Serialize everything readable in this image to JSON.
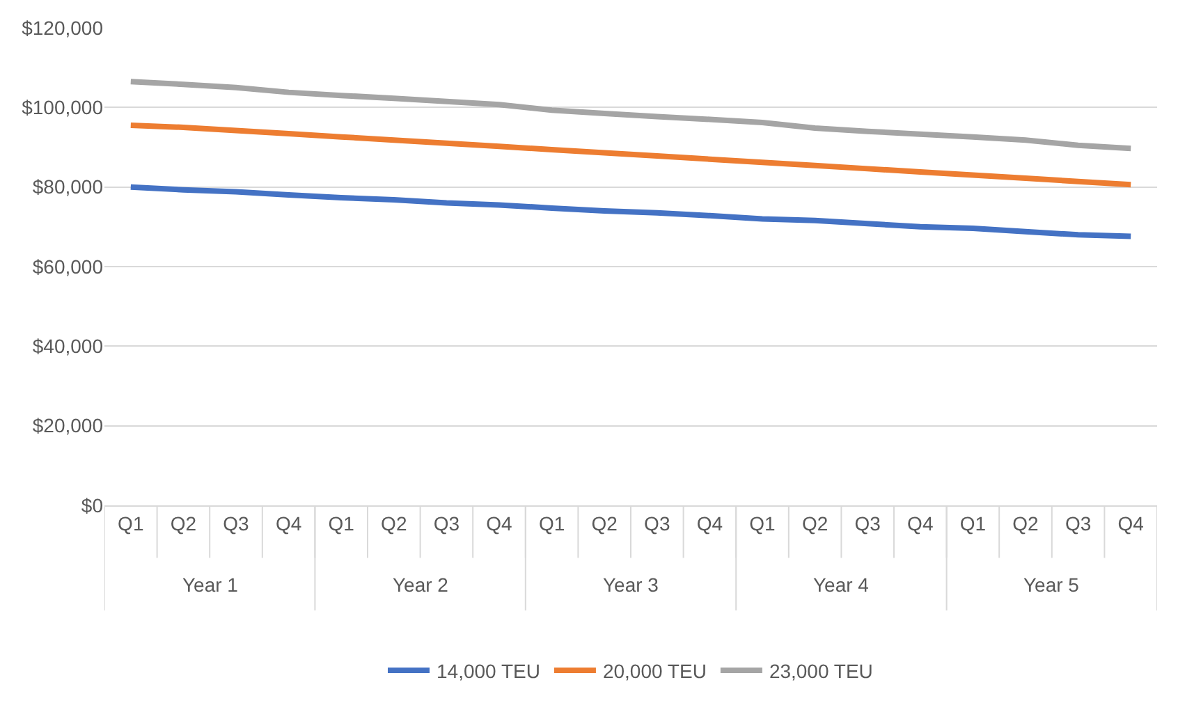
{
  "chart_data": {
    "type": "line",
    "categories": [
      "Q1",
      "Q2",
      "Q3",
      "Q4",
      "Q1",
      "Q2",
      "Q3",
      "Q4",
      "Q1",
      "Q2",
      "Q3",
      "Q4",
      "Q1",
      "Q2",
      "Q3",
      "Q4",
      "Q1",
      "Q2",
      "Q3",
      "Q4"
    ],
    "annotations": [
      "Year 1",
      "Year 2",
      "Year 3",
      "Year 4",
      "Year 5"
    ],
    "series": [
      {
        "name": "14,000 TEU",
        "color": "#4472c4",
        "values": [
          80000,
          79300,
          78800,
          78000,
          77300,
          76800,
          76000,
          75500,
          74700,
          74000,
          73500,
          72800,
          72000,
          71600,
          70800,
          70000,
          69600,
          68800,
          68000,
          67600
        ]
      },
      {
        "name": "20,000 TEU",
        "color": "#ed7d31",
        "values": [
          95500,
          95000,
          94200,
          93400,
          92600,
          91800,
          91000,
          90200,
          89400,
          88600,
          87800,
          87000,
          86200,
          85400,
          84600,
          83800,
          83000,
          82200,
          81400,
          80600
        ]
      },
      {
        "name": "23,000 TEU",
        "color": "#a5a5a5",
        "values": [
          106500,
          105800,
          105000,
          103800,
          103000,
          102300,
          101500,
          100700,
          99300,
          98500,
          97700,
          97000,
          96200,
          94800,
          94000,
          93300,
          92600,
          91800,
          90500,
          89700
        ]
      }
    ],
    "ylim": [
      0,
      120000
    ],
    "yticks": [
      {
        "value": 0,
        "label": "$0"
      },
      {
        "value": 20000,
        "label": "$20,000"
      },
      {
        "value": 40000,
        "label": "$40,000"
      },
      {
        "value": 60000,
        "label": "$60,000"
      },
      {
        "value": 80000,
        "label": "$80,000"
      },
      {
        "value": 100000,
        "label": "$100,000"
      },
      {
        "value": 120000,
        "label": "$120,000"
      }
    ],
    "grid": "y",
    "legend": "bottom",
    "marker": "none",
    "line_style": "solid"
  }
}
